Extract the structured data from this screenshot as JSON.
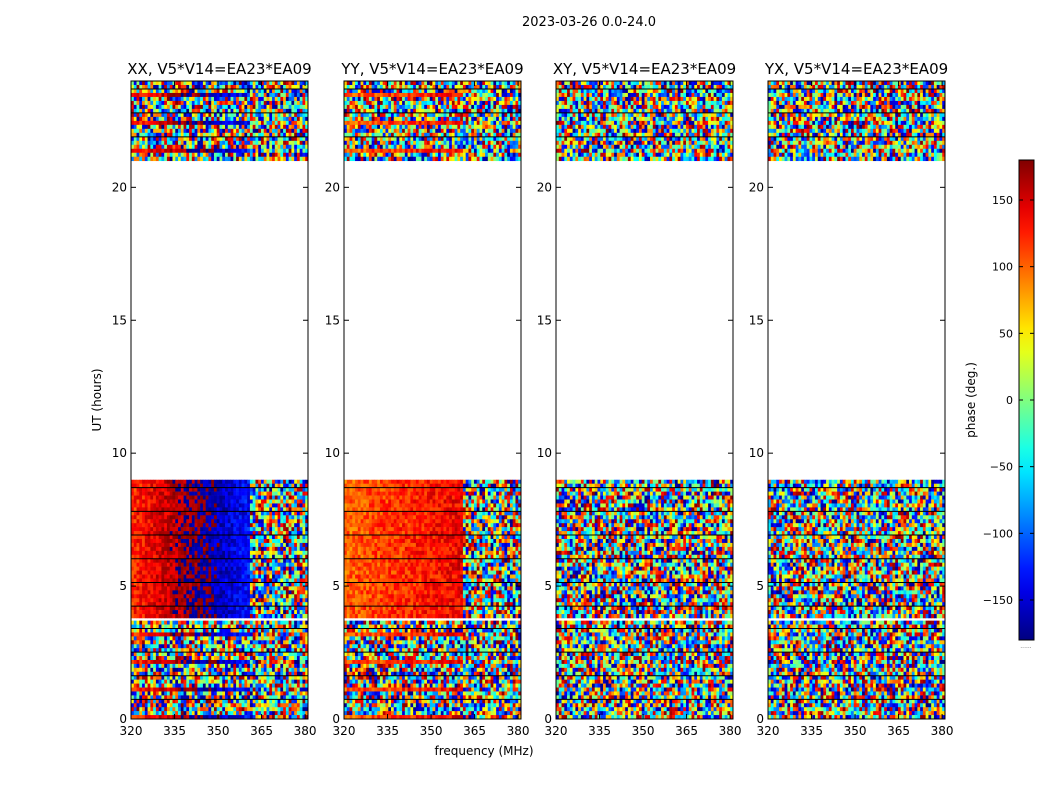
{
  "figure": {
    "suptitle": "2023-03-26 0.0-24.0",
    "xlabel": "frequency (MHz)",
    "ylabel": "UT (hours)",
    "colorbar_label": "phase (deg.)",
    "colorbar_extra": "......"
  },
  "chart_data": [
    {
      "type": "heatmap",
      "title": "XX, V5*V14=EA23*EA09",
      "xlim": [
        320,
        381
      ],
      "ylim": [
        0,
        24
      ],
      "xticks": [
        320,
        335,
        350,
        365,
        380
      ],
      "yticks": [
        0,
        5,
        10,
        15,
        20
      ],
      "data_blocks": [
        [
          0,
          3.7
        ],
        [
          3.8,
          9.0
        ],
        [
          21.0,
          24.0
        ]
      ],
      "coherent_band": [
        320,
        361
      ],
      "coherent_phase_deg": 120,
      "phase_gradient_deg": 110
    },
    {
      "type": "heatmap",
      "title": "YY, V5*V14=EA23*EA09",
      "xlim": [
        320,
        381
      ],
      "ylim": [
        0,
        24
      ],
      "xticks": [
        320,
        335,
        350,
        365,
        380
      ],
      "yticks": [
        0,
        5,
        10,
        15,
        20
      ],
      "data_blocks": [
        [
          0,
          3.7
        ],
        [
          3.8,
          9.0
        ],
        [
          21.0,
          24.0
        ]
      ],
      "coherent_band": [
        320,
        361
      ],
      "coherent_phase_deg": 100,
      "phase_gradient_deg": 40
    },
    {
      "type": "heatmap",
      "title": "XY, V5*V14=EA23*EA09",
      "xlim": [
        320,
        381
      ],
      "ylim": [
        0,
        24
      ],
      "xticks": [
        320,
        335,
        350,
        365,
        380
      ],
      "yticks": [
        0,
        5,
        10,
        15,
        20
      ],
      "data_blocks": [
        [
          0,
          3.7
        ],
        [
          3.8,
          9.0
        ],
        [
          21.0,
          24.0
        ]
      ],
      "coherent_band": null
    },
    {
      "type": "heatmap",
      "title": "YX, V5*V14=EA23*EA09",
      "xlim": [
        320,
        381
      ],
      "ylim": [
        0,
        24
      ],
      "xticks": [
        320,
        335,
        350,
        365,
        380
      ],
      "yticks": [
        0,
        5,
        10,
        15,
        20
      ],
      "data_blocks": [
        [
          0,
          3.7
        ],
        [
          3.8,
          9.0
        ],
        [
          21.0,
          24.0
        ]
      ],
      "coherent_band": null
    }
  ],
  "colorbar": {
    "range": [
      -180,
      180
    ],
    "ticks": [
      -150,
      -100,
      -50,
      0,
      50,
      100,
      150
    ],
    "colormap": "jet"
  }
}
